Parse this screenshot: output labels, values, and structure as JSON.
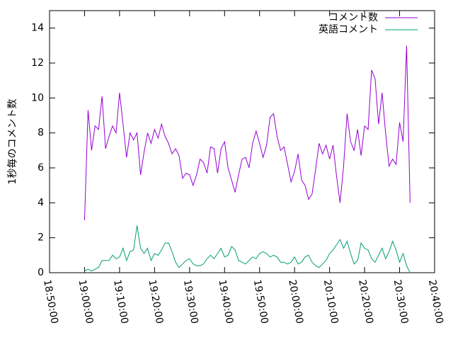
{
  "chart_data": {
    "type": "line",
    "y_label": "1秒毎のコメント数",
    "legend": "top-right",
    "xlim": [
      1130,
      1240
    ],
    "xticks": [
      {
        "value": 1130,
        "label": "18:50:00"
      },
      {
        "value": 1140,
        "label": "19:00:00"
      },
      {
        "value": 1150,
        "label": "19:10:00"
      },
      {
        "value": 1160,
        "label": "19:20:00"
      },
      {
        "value": 1170,
        "label": "19:30:00"
      },
      {
        "value": 1180,
        "label": "19:40:00"
      },
      {
        "value": 1190,
        "label": "19:50:00"
      },
      {
        "value": 1200,
        "label": "20:00:00"
      },
      {
        "value": 1210,
        "label": "20:10:00"
      },
      {
        "value": 1220,
        "label": "20:20:00"
      },
      {
        "value": 1230,
        "label": "20:30:00"
      },
      {
        "value": 1240,
        "label": "20:40:00"
      }
    ],
    "ylim": [
      0,
      15
    ],
    "yticks": [
      0,
      2,
      4,
      6,
      8,
      10,
      12,
      14
    ],
    "x": [
      1140,
      1141,
      1142,
      1143,
      1144,
      1145,
      1146,
      1147,
      1148,
      1149,
      1150,
      1151,
      1152,
      1153,
      1154,
      1155,
      1156,
      1157,
      1158,
      1159,
      1160,
      1161,
      1162,
      1163,
      1164,
      1165,
      1166,
      1167,
      1168,
      1169,
      1170,
      1171,
      1172,
      1173,
      1174,
      1175,
      1176,
      1177,
      1178,
      1179,
      1180,
      1181,
      1182,
      1183,
      1184,
      1185,
      1186,
      1187,
      1188,
      1189,
      1190,
      1191,
      1192,
      1193,
      1194,
      1195,
      1196,
      1197,
      1198,
      1199,
      1200,
      1201,
      1202,
      1203,
      1204,
      1205,
      1206,
      1207,
      1208,
      1209,
      1210,
      1211,
      1212,
      1213,
      1214,
      1215,
      1216,
      1217,
      1218,
      1219,
      1220,
      1221,
      1222,
      1223,
      1224,
      1225,
      1226,
      1227,
      1228,
      1229,
      1230,
      1231,
      1232,
      1233
    ],
    "series": [
      {
        "name": "コメント数",
        "color": "#9400d3",
        "values": [
          3.0,
          9.3,
          7.0,
          8.4,
          8.2,
          10.1,
          7.1,
          7.8,
          8.4,
          8.0,
          10.3,
          8.5,
          6.6,
          8.0,
          7.6,
          8.0,
          5.6,
          6.9,
          8.0,
          7.4,
          8.2,
          7.7,
          8.5,
          7.8,
          7.4,
          6.8,
          7.1,
          6.7,
          5.4,
          5.7,
          5.6,
          5.0,
          5.6,
          6.5,
          6.3,
          5.7,
          7.2,
          7.1,
          5.7,
          7.1,
          7.5,
          6.0,
          5.3,
          4.6,
          5.6,
          6.5,
          6.6,
          6.0,
          7.4,
          8.1,
          7.4,
          6.6,
          7.3,
          8.9,
          9.1,
          7.8,
          7.0,
          7.2,
          6.2,
          5.2,
          5.8,
          6.8,
          5.3,
          5.0,
          4.2,
          4.5,
          5.9,
          7.4,
          6.8,
          7.3,
          6.5,
          7.3,
          5.5,
          4.0,
          6.1,
          9.1,
          7.5,
          7.0,
          8.2,
          6.7,
          8.4,
          8.2,
          11.6,
          11.1,
          8.5,
          10.3,
          8.0,
          6.1,
          6.5,
          6.2,
          8.6,
          7.5,
          13.0,
          4.0
        ]
      },
      {
        "name": "英語コメント",
        "color": "#009e73",
        "values": [
          0.1,
          0.2,
          0.1,
          0.2,
          0.3,
          0.7,
          0.7,
          0.7,
          1.0,
          0.8,
          0.9,
          1.4,
          0.7,
          1.2,
          1.3,
          2.7,
          1.4,
          1.1,
          1.4,
          0.7,
          1.1,
          1.0,
          1.3,
          1.7,
          1.7,
          1.2,
          0.6,
          0.3,
          0.5,
          0.7,
          0.8,
          0.5,
          0.4,
          0.4,
          0.5,
          0.8,
          1.0,
          0.8,
          1.1,
          1.4,
          0.9,
          1.0,
          1.5,
          1.3,
          0.7,
          0.6,
          0.5,
          0.7,
          0.9,
          0.8,
          1.1,
          1.2,
          1.1,
          0.9,
          1.0,
          0.9,
          0.6,
          0.6,
          0.5,
          0.6,
          0.9,
          0.5,
          0.6,
          0.9,
          1.0,
          0.6,
          0.4,
          0.3,
          0.5,
          0.7,
          1.1,
          1.3,
          1.6,
          1.9,
          1.4,
          1.8,
          1.1,
          0.5,
          0.7,
          1.7,
          1.4,
          1.3,
          0.8,
          0.6,
          1.0,
          1.4,
          0.8,
          1.2,
          1.8,
          1.3,
          0.6,
          1.1,
          0.4,
          0.0
        ]
      }
    ]
  }
}
